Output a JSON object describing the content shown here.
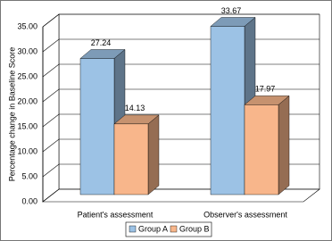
{
  "chart_data": {
    "type": "bar3d",
    "y_label": "Percentage change in Baseline Score",
    "categories": [
      "Patient's assessment",
      "Observer's assessment"
    ],
    "series": [
      {
        "name": "Group A",
        "color": "#9cc2e5",
        "values": [
          27.24,
          33.67
        ]
      },
      {
        "name": "Group B",
        "color": "#f8b68b",
        "values": [
          14.13,
          17.97
        ]
      }
    ],
    "ylim": [
      0,
      35
    ],
    "yticks": [
      {
        "value": 0,
        "label": "0.00"
      },
      {
        "value": 5,
        "label": "5.00"
      },
      {
        "value": 10,
        "label": "10.00"
      },
      {
        "value": 15,
        "label": "15.00"
      },
      {
        "value": 20,
        "label": "20.00"
      },
      {
        "value": 25,
        "label": "25.00"
      },
      {
        "value": 30,
        "label": "30.00"
      },
      {
        "value": 35,
        "label": "35.00"
      }
    ],
    "grid": true,
    "legend": "bottom"
  }
}
